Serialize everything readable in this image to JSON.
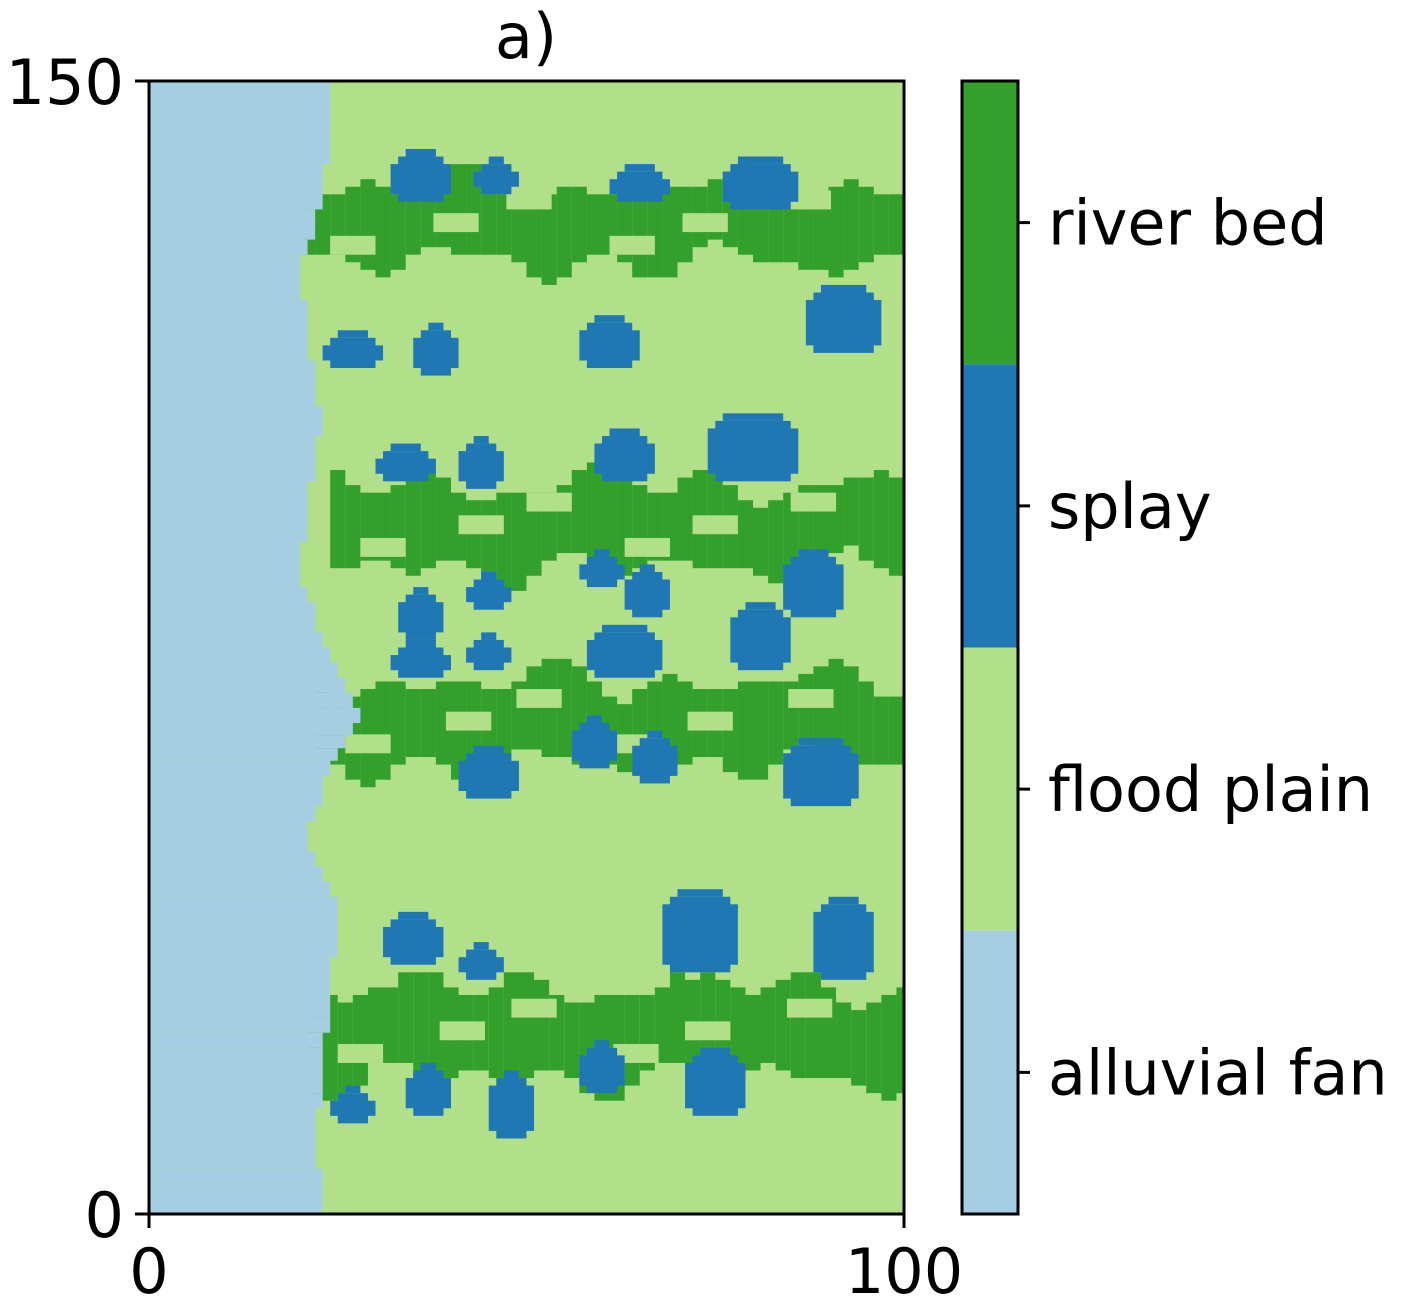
{
  "chart_data": {
    "type": "heatmap",
    "title": "a)",
    "xlabel": "",
    "ylabel": "",
    "xlim": [
      0,
      100
    ],
    "ylim": [
      0,
      150
    ],
    "x_ticks": [
      "0",
      "100"
    ],
    "y_ticks": [
      "0",
      "150"
    ],
    "colorbar": {
      "type": "categorical",
      "categories": [
        {
          "label": "alluvial fan",
          "color": "#a6cee3"
        },
        {
          "label": "flood plain",
          "color": "#b2df8a"
        },
        {
          "label": "splay",
          "color": "#1f78b4"
        },
        {
          "label": "river bed",
          "color": "#33a02c"
        }
      ]
    },
    "facies_map": {
      "description_units": "x and y in grid cells (0-100, 0-150)",
      "alluvial_fan_boundary": [
        [
          0,
          23
        ],
        [
          10,
          22
        ],
        [
          20,
          23
        ],
        [
          30,
          24
        ],
        [
          40,
          25
        ],
        [
          50,
          21
        ],
        [
          60,
          24
        ],
        [
          65,
          28
        ],
        [
          75,
          23
        ],
        [
          85,
          20
        ],
        [
          95,
          21
        ],
        [
          105,
          23
        ],
        [
          115,
          21
        ],
        [
          125,
          20
        ],
        [
          135,
          23
        ],
        [
          145,
          24
        ],
        [
          150,
          24
        ]
      ],
      "river_beds": [
        {
          "y_center": 131,
          "width": 10,
          "x_start": 20
        },
        {
          "y_center": 91,
          "width": 11,
          "x_start": 24
        },
        {
          "y_center": 65,
          "width": 11,
          "x_start": 22
        },
        {
          "y_center": 24,
          "width": 12,
          "x_start": 21
        }
      ],
      "splays": [
        [
          36,
          137,
          3,
          3
        ],
        [
          46,
          137,
          2,
          2
        ],
        [
          65,
          136,
          3,
          2
        ],
        [
          81,
          136,
          4,
          3
        ],
        [
          27,
          114,
          3,
          2
        ],
        [
          38,
          114,
          2,
          3
        ],
        [
          61,
          115,
          3,
          3
        ],
        [
          92,
          118,
          4,
          4
        ],
        [
          34,
          99,
          3,
          2
        ],
        [
          44,
          99,
          2,
          3
        ],
        [
          63,
          100,
          3,
          3
        ],
        [
          80,
          101,
          5,
          4
        ],
        [
          36,
          79,
          2,
          3
        ],
        [
          45,
          82,
          2,
          2
        ],
        [
          60,
          85,
          2,
          2
        ],
        [
          66,
          82,
          2,
          3
        ],
        [
          88,
          83,
          3,
          4
        ],
        [
          36,
          73,
          3,
          2
        ],
        [
          45,
          74,
          2,
          2
        ],
        [
          63,
          74,
          4,
          3
        ],
        [
          81,
          76,
          3,
          4
        ],
        [
          59,
          62,
          2,
          3
        ],
        [
          67,
          60,
          2,
          3
        ],
        [
          89,
          58,
          4,
          4
        ],
        [
          45,
          58,
          3,
          3
        ],
        [
          35,
          36,
          3,
          3
        ],
        [
          44,
          33,
          2,
          2
        ],
        [
          73,
          37,
          4,
          5
        ],
        [
          92,
          36,
          3,
          5
        ],
        [
          27,
          14,
          2,
          2
        ],
        [
          37,
          16,
          2,
          3
        ],
        [
          48,
          14,
          2,
          4
        ],
        [
          60,
          19,
          2,
          3
        ],
        [
          75,
          17,
          3,
          4
        ]
      ]
    }
  }
}
